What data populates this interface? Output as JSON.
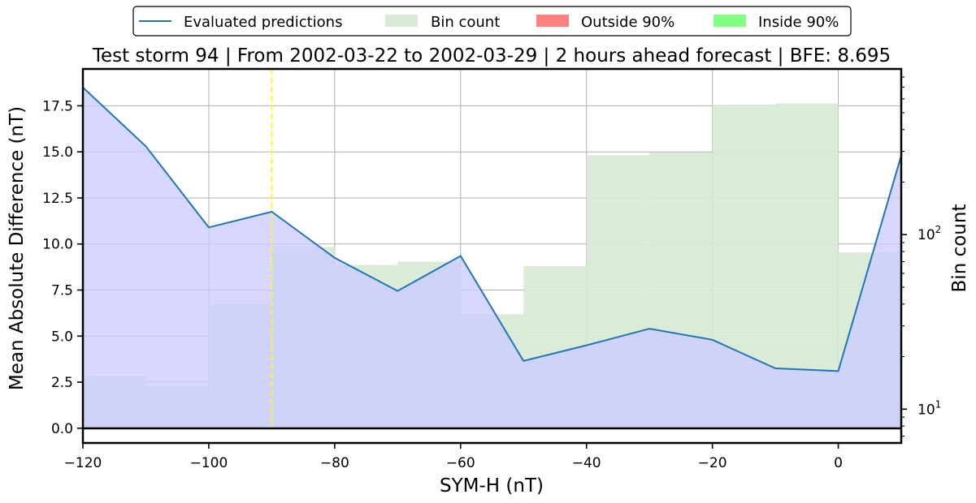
{
  "chart_data": {
    "type": "line",
    "title": "Test storm 94 | From 2002-03-22 to 2002-03-29 | 2 hours ahead forecast | BFE: 8.695",
    "xlabel": "SYM-H (nT)",
    "ylabel": "Mean Absolute Difference (nT)",
    "y2label": "Bin count",
    "xlim": [
      -120,
      10
    ],
    "ylim": [
      -0.8,
      19.5
    ],
    "y2scale": "log",
    "y2lim": [
      6.4,
      890
    ],
    "x_ticks": [
      -120,
      -100,
      -80,
      -60,
      -40,
      -20,
      0
    ],
    "x_tick_labels": [
      "−120",
      "−100",
      "−80",
      "−60",
      "−40",
      "−20",
      "0"
    ],
    "y_ticks": [
      0.0,
      2.5,
      5.0,
      7.5,
      10.0,
      12.5,
      15.0,
      17.5
    ],
    "y_tick_labels": [
      "0.0",
      "2.5",
      "5.0",
      "7.5",
      "10.0",
      "12.5",
      "15.0",
      "17.5"
    ],
    "y2_major_ticks": [
      10,
      100
    ],
    "grid": true,
    "legend_position": "top-center, outside plot",
    "legend": [
      {
        "label": "Evaluated predictions",
        "kind": "line",
        "color": "#1f77b4"
      },
      {
        "label": "Bin count",
        "kind": "patch",
        "color": "#d8ebd6"
      },
      {
        "label": "Outside 90%",
        "kind": "patch",
        "color": "#ff8080"
      },
      {
        "label": "Inside 90%",
        "kind": "patch",
        "color": "#80ff80"
      }
    ],
    "series": [
      {
        "name": "Evaluated predictions",
        "color": "#1f77b4",
        "fill": "#ccccff",
        "x": [
          -120,
          -110,
          -100,
          -90,
          -80,
          -70,
          -60,
          -50,
          -40,
          -30,
          -20,
          -10,
          0,
          10
        ],
        "y": [
          18.5,
          15.3,
          10.9,
          11.75,
          9.25,
          7.45,
          9.35,
          3.65,
          4.5,
          5.4,
          4.8,
          3.25,
          3.1,
          14.8
        ]
      }
    ],
    "bin_count": {
      "name": "Bin count",
      "color": "#d8ebd6",
      "edges": [
        -120,
        -110,
        -100,
        -90,
        -80,
        -70,
        -60,
        -50,
        -40,
        -30,
        -20,
        -10,
        0,
        10
      ],
      "values": [
        15.5,
        13.5,
        40,
        85,
        67,
        70,
        35,
        66,
        285,
        295,
        555,
        565,
        79
      ]
    },
    "reference_line": {
      "x": -90,
      "color": "#ffff00",
      "style": "dashed"
    },
    "coverage_bar": {
      "inside_color": "#80ff80",
      "outside_color": "#ff8080",
      "stops": [
        {
          "x": -120,
          "mix": 0.35
        },
        {
          "x": -100,
          "mix": 0.3
        },
        {
          "x": -90,
          "mix": 0.15
        },
        {
          "x": -80,
          "mix": 0.25
        },
        {
          "x": -60,
          "mix": 0.3
        },
        {
          "x": -55,
          "mix": 0.0
        },
        {
          "x": 0,
          "mix": 0.0
        },
        {
          "x": 3,
          "mix": 0.3
        },
        {
          "x": 7,
          "mix": 0.75
        },
        {
          "x": 10,
          "mix": 1.0
        }
      ]
    }
  }
}
